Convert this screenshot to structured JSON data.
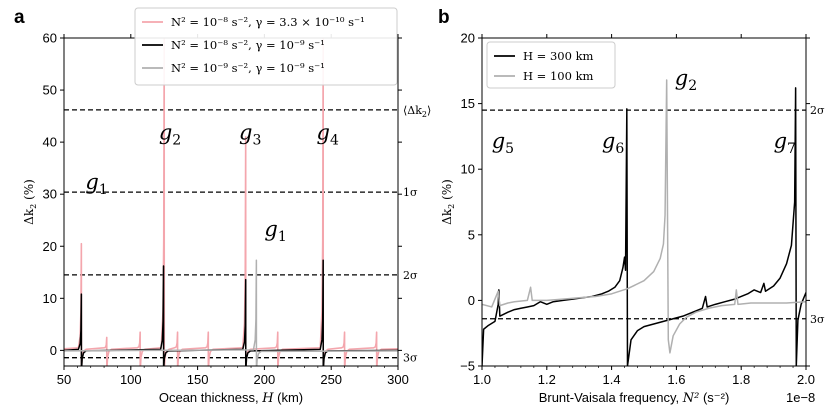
{
  "chart_data": [
    {
      "panel": "a",
      "type": "line",
      "xlabel": "Ocean thickness, H (km)",
      "ylabel": "Δk2 (%)",
      "xlim": [
        50,
        300
      ],
      "ylim": [
        -3,
        60
      ],
      "xticks": [
        50,
        100,
        150,
        200,
        250,
        300
      ],
      "yticks": [
        0,
        10,
        20,
        30,
        40,
        50,
        60
      ],
      "legend": [
        {
          "label": "N² = 10⁻⁸ s⁻², γ = 3.3 × 10⁻¹⁰ s⁻¹",
          "color": "#f4a6ad"
        },
        {
          "label": "N² = 10⁻⁸ s⁻², γ = 10⁻⁹ s⁻¹",
          "color": "#000000"
        },
        {
          "label": "N² = 10⁻⁹ s⁻², γ = 10⁻⁹ s⁻¹",
          "color": "#b0b0b0"
        }
      ],
      "legend_position": "top-center",
      "reference_lines": [
        {
          "y": 46.2,
          "label": "⟨Δk2⟩"
        },
        {
          "y": 30.4,
          "label": "1σ"
        },
        {
          "y": 14.5,
          "label": "2σ"
        },
        {
          "y": -1.4,
          "label": "3σ"
        }
      ],
      "annotations": [
        {
          "text": "g1",
          "x": 66,
          "y": 31
        },
        {
          "text": "g2",
          "x": 121,
          "y": 40.5
        },
        {
          "text": "g3",
          "x": 181,
          "y": 40.5
        },
        {
          "text": "g4",
          "x": 239,
          "y": 40.5
        },
        {
          "text": "g1",
          "x": 200,
          "y": 22
        }
      ],
      "series": [
        {
          "name": "N² = 10⁻⁸ s⁻², γ = 3.3 × 10⁻¹⁰ s⁻¹",
          "color": "#f4a6ad",
          "baseline": 0.3,
          "resonances": [
            {
              "x": 63,
              "peak": 20.5
            },
            {
              "x": 82,
              "peak": 2.5
            },
            {
              "x": 107,
              "peak": 3.5
            },
            {
              "x": 125,
              "peak": 60
            },
            {
              "x": 135,
              "peak": 3.5
            },
            {
              "x": 158,
              "peak": 3.5
            },
            {
              "x": 186,
              "peak": 41
            },
            {
              "x": 210,
              "peak": 3.5
            },
            {
              "x": 244,
              "peak": 60
            },
            {
              "x": 260,
              "peak": 3.5
            },
            {
              "x": 284,
              "peak": 3.5
            }
          ]
        },
        {
          "name": "N² = 10⁻⁸ s⁻², γ = 10⁻⁹ s⁻¹",
          "color": "#000000",
          "baseline": 0.0,
          "resonances": [
            {
              "x": 63,
              "peak": 10.8
            },
            {
              "x": 124.5,
              "peak": 16.2
            },
            {
              "x": 186,
              "peak": 13.6
            },
            {
              "x": 244,
              "peak": 17.3
            }
          ]
        },
        {
          "name": "N² = 10⁻⁹ s⁻², γ = 10⁻⁹ s⁻¹",
          "color": "#b0b0b0",
          "baseline": -0.1,
          "resonances": [
            {
              "x": 194,
              "peak": 17.3
            }
          ]
        }
      ]
    },
    {
      "panel": "b",
      "type": "line",
      "xlabel": "Brunt-Vaisala frequency, N² (s⁻²)",
      "ylabel": "Δk2 (%)",
      "xlim": [
        1.0,
        2.0
      ],
      "x_scale_note": "1e−8",
      "ylim": [
        -5,
        20
      ],
      "xticks": [
        1.0,
        1.2,
        1.4,
        1.6,
        1.8,
        2.0
      ],
      "yticks": [
        -5,
        0,
        5,
        10,
        15,
        20
      ],
      "legend": [
        {
          "label": "H = 300 km",
          "color": "#000000"
        },
        {
          "label": "H = 100 km",
          "color": "#b0b0b0"
        }
      ],
      "legend_position": "top-left",
      "reference_lines": [
        {
          "y": 14.5,
          "label": "2σ"
        },
        {
          "y": -1.4,
          "label": "3σ"
        }
      ],
      "annotations": [
        {
          "text": "g5",
          "x": 1.03,
          "y": 11.6
        },
        {
          "text": "g6",
          "x": 1.37,
          "y": 11.6
        },
        {
          "text": "g2",
          "x": 1.595,
          "y": 16.4
        },
        {
          "text": "g7",
          "x": 1.9,
          "y": 11.6
        }
      ],
      "series": [
        {
          "name": "H = 300 km",
          "color": "#000000",
          "points": [
            [
              1.0,
              -5
            ],
            [
              1.005,
              -2.2
            ],
            [
              1.02,
              -1.9
            ],
            [
              1.04,
              -1.6
            ],
            [
              1.05,
              -0.3
            ],
            [
              1.052,
              0.8
            ],
            [
              1.055,
              -1.2
            ],
            [
              1.08,
              -0.9
            ],
            [
              1.1,
              -0.7
            ],
            [
              1.12,
              -0.6
            ],
            [
              1.14,
              -0.5
            ],
            [
              1.16,
              -0.4
            ],
            [
              1.18,
              -0.1
            ],
            [
              1.2,
              -0.3
            ],
            [
              1.22,
              -0.1
            ],
            [
              1.25,
              0.0
            ],
            [
              1.28,
              0.1
            ],
            [
              1.31,
              0.2
            ],
            [
              1.34,
              0.3
            ],
            [
              1.37,
              0.5
            ],
            [
              1.39,
              0.7
            ],
            [
              1.41,
              1.0
            ],
            [
              1.425,
              1.5
            ],
            [
              1.435,
              2.5
            ],
            [
              1.44,
              3.3
            ],
            [
              1.443,
              2.3
            ],
            [
              1.447,
              14.6
            ],
            [
              1.449,
              -5
            ],
            [
              1.46,
              -3
            ],
            [
              1.48,
              -2.3
            ],
            [
              1.5,
              -2.0
            ],
            [
              1.53,
              -1.8
            ],
            [
              1.56,
              -1.6
            ],
            [
              1.59,
              -1.4
            ],
            [
              1.62,
              -1.2
            ],
            [
              1.64,
              -1.0
            ],
            [
              1.66,
              -0.8
            ],
            [
              1.68,
              -0.6
            ],
            [
              1.69,
              0.3
            ],
            [
              1.695,
              -0.5
            ],
            [
              1.72,
              -0.3
            ],
            [
              1.75,
              -0.1
            ],
            [
              1.78,
              0.1
            ],
            [
              1.8,
              0.3
            ],
            [
              1.82,
              0.5
            ],
            [
              1.84,
              0.8
            ],
            [
              1.86,
              0.6
            ],
            [
              1.87,
              1.3
            ],
            [
              1.875,
              0.7
            ],
            [
              1.9,
              1.1
            ],
            [
              1.92,
              1.7
            ],
            [
              1.94,
              2.8
            ],
            [
              1.955,
              4.2
            ],
            [
              1.965,
              7.5
            ],
            [
              1.968,
              16.2
            ],
            [
              1.97,
              -5
            ],
            [
              1.975,
              -1.5
            ],
            [
              1.985,
              -0.3
            ],
            [
              2.0,
              0.6
            ]
          ]
        },
        {
          "name": "H = 100 km",
          "color": "#b0b0b0",
          "points": [
            [
              1.0,
              -0.3
            ],
            [
              1.03,
              -0.5
            ],
            [
              1.05,
              0.7
            ],
            [
              1.055,
              -0.4
            ],
            [
              1.08,
              -0.2
            ],
            [
              1.1,
              -0.1
            ],
            [
              1.14,
              0.0
            ],
            [
              1.15,
              1.0
            ],
            [
              1.155,
              0.0
            ],
            [
              1.2,
              0.0
            ],
            [
              1.25,
              0.1
            ],
            [
              1.3,
              0.2
            ],
            [
              1.35,
              0.3
            ],
            [
              1.4,
              0.5
            ],
            [
              1.45,
              0.9
            ],
            [
              1.5,
              1.5
            ],
            [
              1.53,
              2.2
            ],
            [
              1.55,
              3.2
            ],
            [
              1.56,
              4.3
            ],
            [
              1.565,
              6.5
            ],
            [
              1.57,
              16.8
            ],
            [
              1.575,
              -3.0
            ],
            [
              1.58,
              -4.0
            ],
            [
              1.59,
              -2.7
            ],
            [
              1.61,
              -1.8
            ],
            [
              1.63,
              -1.3
            ],
            [
              1.66,
              -0.9
            ],
            [
              1.7,
              -0.6
            ],
            [
              1.74,
              -0.4
            ],
            [
              1.78,
              -0.3
            ],
            [
              1.785,
              0.8
            ],
            [
              1.79,
              -0.3
            ],
            [
              1.83,
              -0.2
            ],
            [
              1.88,
              -0.2
            ],
            [
              1.94,
              -0.2
            ],
            [
              2.0,
              -0.1
            ]
          ]
        }
      ]
    }
  ]
}
